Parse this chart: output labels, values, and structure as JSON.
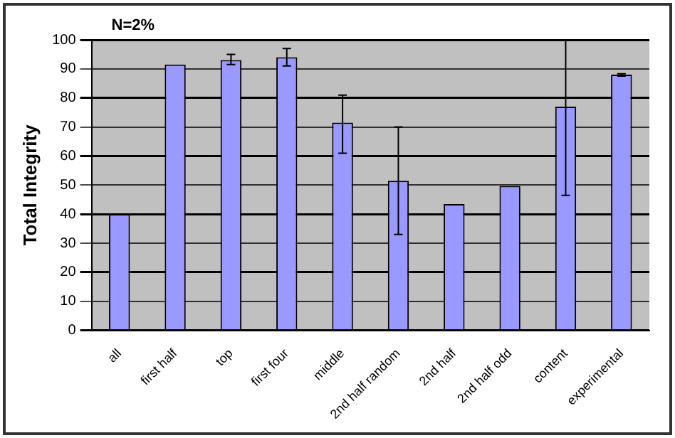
{
  "chart_data": {
    "type": "bar",
    "ylabel": "Total Integrity",
    "annotations": [
      "N=2%"
    ],
    "categories": [
      "all",
      "first half",
      "top",
      "first four",
      "middle",
      "2nd half random",
      "2nd half",
      "2nd half odd",
      "content",
      "experimental"
    ],
    "values": [
      40,
      91.5,
      93,
      94,
      71.5,
      51.5,
      43.5,
      49.7,
      77,
      88
    ],
    "errors": [
      null,
      null,
      [
        91.5,
        95
      ],
      [
        91,
        97
      ],
      [
        61,
        81
      ],
      [
        33,
        70
      ],
      null,
      null,
      [
        46.5,
        100
      ],
      [
        87.5,
        88.3
      ]
    ],
    "color": "#9999ff",
    "ylim": [
      0,
      100
    ],
    "yticks": [
      0,
      10,
      20,
      30,
      40,
      50,
      60,
      70,
      80,
      90,
      100
    ],
    "grid": "y",
    "legend": false
  }
}
